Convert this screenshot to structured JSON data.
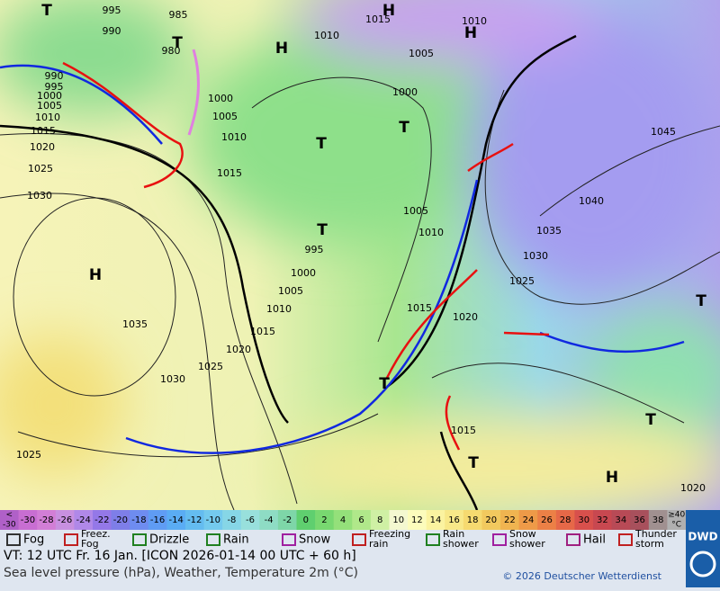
{
  "map": {
    "labels": [
      "995",
      "990",
      "985",
      "980",
      "990",
      "995",
      "1000",
      "1005",
      "1010",
      "1015",
      "1020",
      "1025",
      "1030",
      "1035",
      "1030",
      "1025",
      "1020",
      "1015",
      "1010",
      "1005",
      "1000",
      "995",
      "1000",
      "1005",
      "1010",
      "1015",
      "1010",
      "1015",
      "1010",
      "1005",
      "1000",
      "1005",
      "1010",
      "1015",
      "1020",
      "1025",
      "1030",
      "1035",
      "1040",
      "1045",
      "1015",
      "1020",
      "1025"
    ],
    "centers": [
      "H",
      "H",
      "H",
      "H",
      "H",
      "T",
      "T",
      "T",
      "T",
      "T",
      "T",
      "T",
      "T",
      "T"
    ]
  },
  "scale": {
    "labels": [
      "-30",
      "-28",
      "-26",
      "-24",
      "-22",
      "-20",
      "-18",
      "-16",
      "-14",
      "-12",
      "-10",
      "-8",
      "-6",
      "-4",
      "-2",
      "0",
      "2",
      "4",
      "6",
      "8",
      "10",
      "12",
      "14",
      "16",
      "18",
      "20",
      "22",
      "24",
      "26",
      "28",
      "30",
      "32",
      "34",
      "36",
      "38"
    ],
    "first": [
      "<",
      "-30"
    ],
    "last": [
      "≥40",
      "°C"
    ],
    "colors": [
      "#c86ed2",
      "#d27ed6",
      "#c890e0",
      "#b088e8",
      "#9478e8",
      "#7e7ee8",
      "#6e8cf0",
      "#5f9cf4",
      "#5aacf4",
      "#64bcf0",
      "#74caee",
      "#86d6e6",
      "#98e0dc",
      "#8edcc4",
      "#7ed6a8",
      "#5fcf6f",
      "#78d870",
      "#94e07a",
      "#b0e88a",
      "#cff0a4",
      "#f4f8d0",
      "#fcfcbc",
      "#fbf3a0",
      "#f8e888",
      "#f6da70",
      "#f2c95e",
      "#f0b450",
      "#ee9a48",
      "#ec8046",
      "#e66848",
      "#d8504c",
      "#c84850",
      "#b84a56",
      "#a8505c",
      "#a09090"
    ],
    "first_color": "#b060c8",
    "last_color": "#b0b0b0"
  },
  "legend": [
    [
      "Fog"
    ],
    [
      "Freez.",
      "Fog"
    ],
    [
      "Drizzle"
    ],
    [
      "Rain"
    ],
    [
      "Snow"
    ],
    [
      "Freezing",
      "rain"
    ],
    [
      "Rain",
      "shower"
    ],
    [
      "Snow",
      "shower"
    ],
    [
      "Hail"
    ],
    [
      "Thunder",
      "storm"
    ]
  ],
  "footer": {
    "line1": "VT: 12 UTC Fr.  16 Jan. [ICON 2026-01-14  00 UTC + 60 h]",
    "line2": "Sea level pressure (hPa), Weather, Temperature 2m (°C)",
    "copyright": "© 2026 Deutscher Wetterdienst",
    "logo": "DWD"
  }
}
